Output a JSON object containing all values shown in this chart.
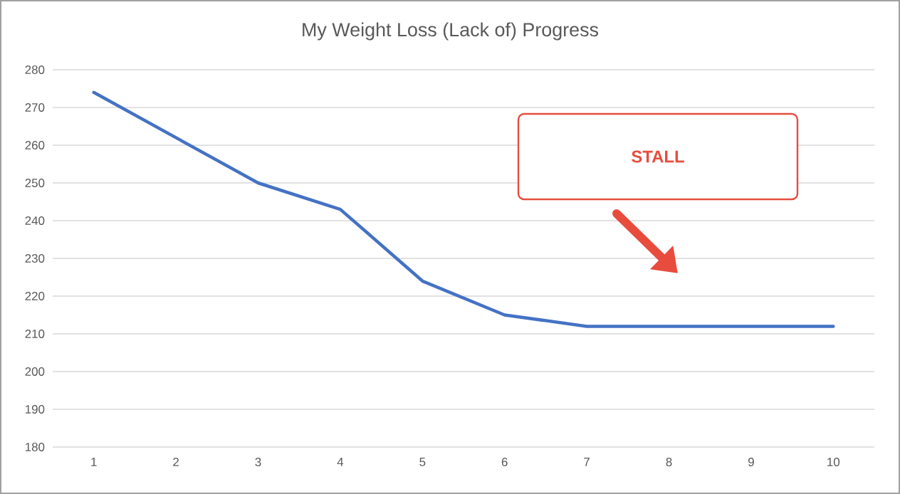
{
  "chart_data": {
    "type": "line",
    "title": "My Weight Loss (Lack of) Progress",
    "categories": [
      "1",
      "2",
      "3",
      "4",
      "5",
      "6",
      "7",
      "8",
      "9",
      "10"
    ],
    "series": [
      {
        "color": "#4472c4",
        "values": [
          274,
          262,
          250,
          243,
          224,
          215,
          212,
          212,
          212,
          212
        ]
      }
    ],
    "ylim": [
      180,
      280
    ],
    "yticks": [
      180,
      190,
      200,
      210,
      220,
      230,
      240,
      250,
      260,
      270,
      280
    ],
    "grid": "y",
    "marker": "none",
    "line_style": "solid",
    "annotations": [
      "STALL"
    ]
  }
}
